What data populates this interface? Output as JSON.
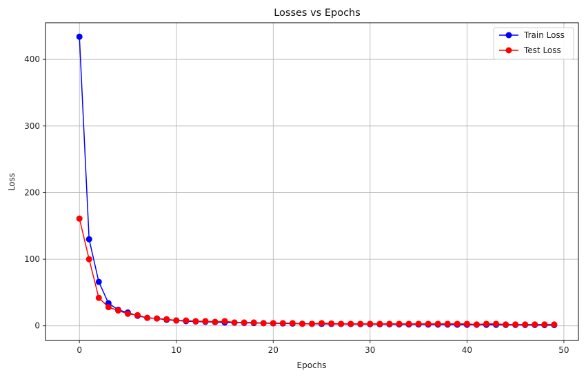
{
  "chart_data": {
    "type": "line",
    "title": "Losses vs Epochs",
    "xlabel": "Epochs",
    "ylabel": "Loss",
    "xlim": [
      -3.5,
      51.5
    ],
    "ylim": [
      -22,
      455
    ],
    "xticks": [
      0,
      10,
      20,
      30,
      40,
      50
    ],
    "yticks": [
      0,
      100,
      200,
      300,
      400
    ],
    "grid": true,
    "legend_position": "top-right",
    "x": [
      0,
      1,
      2,
      3,
      4,
      5,
      6,
      7,
      8,
      9,
      10,
      11,
      12,
      13,
      14,
      15,
      16,
      17,
      18,
      19,
      20,
      21,
      22,
      23,
      24,
      25,
      26,
      27,
      28,
      29,
      30,
      31,
      32,
      33,
      34,
      35,
      36,
      37,
      38,
      39,
      40,
      41,
      42,
      43,
      44,
      45,
      46,
      47,
      48,
      49
    ],
    "series": [
      {
        "name": "Train Loss",
        "color": "#0000ff",
        "values": [
          434,
          130,
          66,
          34,
          24,
          20,
          15,
          12,
          11,
          9,
          8,
          7,
          6.5,
          6,
          5.5,
          5,
          4.8,
          4.5,
          4.2,
          4,
          3.8,
          3.6,
          3.4,
          3.2,
          3,
          2.9,
          2.8,
          2.7,
          2.6,
          2.5,
          2.4,
          2.3,
          2.2,
          2.1,
          2,
          2,
          1.9,
          1.8,
          1.8,
          1.7,
          1.6,
          1.6,
          1.5,
          1.5,
          1.4,
          1.4,
          1.3,
          1.3,
          1.2,
          1.2
        ]
      },
      {
        "name": "Test Loss",
        "color": "#ff0000",
        "values": [
          161,
          100,
          42,
          28,
          23,
          18,
          16,
          12,
          11,
          10,
          8,
          8,
          7,
          7,
          6,
          7,
          5,
          5,
          5,
          4,
          4,
          4,
          4,
          3,
          3,
          4,
          3.5,
          3,
          3,
          3,
          3,
          3,
          3,
          3,
          3,
          3,
          3,
          3,
          3,
          3,
          3,
          2,
          3,
          3,
          2,
          2,
          2,
          2,
          2,
          2
        ]
      }
    ]
  }
}
